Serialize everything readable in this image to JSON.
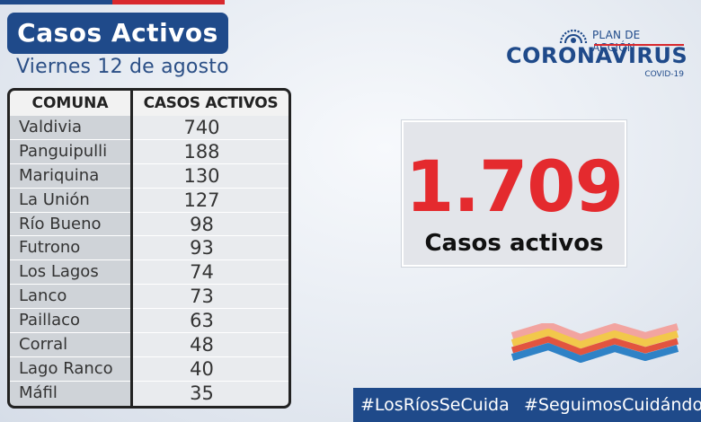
{
  "header": {
    "title": "Casos Activos",
    "date": "Viernes 12 de agosto"
  },
  "table": {
    "columns": [
      "COMUNA",
      "CASOS ACTIVOS"
    ],
    "rows": [
      {
        "comuna": "Valdivia",
        "casos": "740"
      },
      {
        "comuna": "Panguipulli",
        "casos": "188"
      },
      {
        "comuna": "Mariquina",
        "casos": "130"
      },
      {
        "comuna": "La Unión",
        "casos": "127"
      },
      {
        "comuna": "Río Bueno",
        "casos": "98"
      },
      {
        "comuna": "Futrono",
        "casos": "93"
      },
      {
        "comuna": "Los Lagos",
        "casos": "74"
      },
      {
        "comuna": "Lanco",
        "casos": "73"
      },
      {
        "comuna": "Paillaco",
        "casos": "63"
      },
      {
        "comuna": "Corral",
        "casos": "48"
      },
      {
        "comuna": "Lago Ranco",
        "casos": "40"
      },
      {
        "comuna": "Máfil",
        "casos": "35"
      }
    ]
  },
  "logo": {
    "plan": "PLAN DE ACCIÓN",
    "name": "CORONAVIRUS",
    "sub": "COVID-19"
  },
  "total": {
    "value": "1.709",
    "label": "Casos activos"
  },
  "hashtags": {
    "first": "#LosRíosSeCuida",
    "second": "#SeguimosCuidándon"
  },
  "colors": {
    "brand_blue": "#1f4a8a",
    "accent_red": "#e42a2e"
  }
}
